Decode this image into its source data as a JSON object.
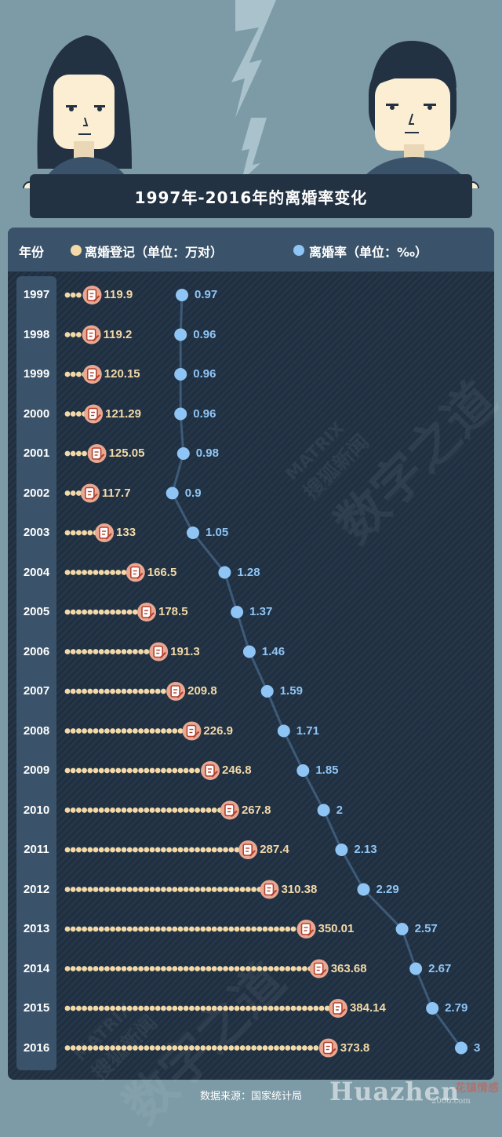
{
  "title": "1997年-2016年的离婚率变化",
  "legend": {
    "year_header": "年份",
    "series1": "离婚登记（单位：万对）",
    "series2": "离婚率（单位：‰）"
  },
  "source": "数据来源：国家统计局",
  "watermark": {
    "latin": "MATRIX",
    "cn_top": "搜狐新闻",
    "cn_main": "数字之道"
  },
  "brand": {
    "name": "Huazhen",
    "site": "2006.com",
    "cn": "花镇情感"
  },
  "colors": {
    "background": "#7d9ba6",
    "panel": "#223243",
    "header": "#3a536a",
    "registrations": "#f3d9a8",
    "registration_badge": "#e9a892",
    "rate": "#8fc5f5",
    "rate_line": "#3d5a78"
  },
  "icons": {
    "registration_marker": "document-pen-icon"
  },
  "chart_data": {
    "type": "line",
    "categories": [
      "1997",
      "1998",
      "1999",
      "2000",
      "2001",
      "2002",
      "2003",
      "2004",
      "2005",
      "2006",
      "2007",
      "2008",
      "2009",
      "2010",
      "2011",
      "2012",
      "2013",
      "2014",
      "2015",
      "2016"
    ],
    "series": [
      {
        "name": "离婚登记（单位：万对）",
        "type": "bar",
        "values": [
          119.9,
          119.2,
          120.15,
          121.29,
          125.05,
          117.7,
          133,
          166.5,
          178.5,
          191.3,
          209.8,
          226.9,
          246.8,
          267.8,
          287.4,
          310.38,
          350.01,
          363.68,
          384.14,
          373.8
        ],
        "labels": [
          "119.9",
          "119.2",
          "120.15",
          "121.29",
          "125.05",
          "117.7",
          "133",
          "166.5",
          "178.5",
          "191.3",
          "209.8",
          "226.9",
          "246.8",
          "267.8",
          "287.4",
          "310.38",
          "350.01",
          "363.68",
          "384.14",
          "373.8"
        ]
      },
      {
        "name": "离婚率（单位：‰）",
        "type": "line",
        "values": [
          0.97,
          0.96,
          0.96,
          0.96,
          0.98,
          0.9,
          1.05,
          1.28,
          1.37,
          1.46,
          1.59,
          1.71,
          1.85,
          2,
          2.13,
          2.29,
          2.57,
          2.67,
          2.79,
          3
        ],
        "labels": [
          "0.97",
          "0.96",
          "0.96",
          "0.96",
          "0.98",
          "0.9",
          "1.05",
          "1.28",
          "1.37",
          "1.46",
          "1.59",
          "1.71",
          "1.85",
          "2",
          "2.13",
          "2.29",
          "2.57",
          "2.67",
          "2.79",
          "3"
        ]
      }
    ]
  }
}
